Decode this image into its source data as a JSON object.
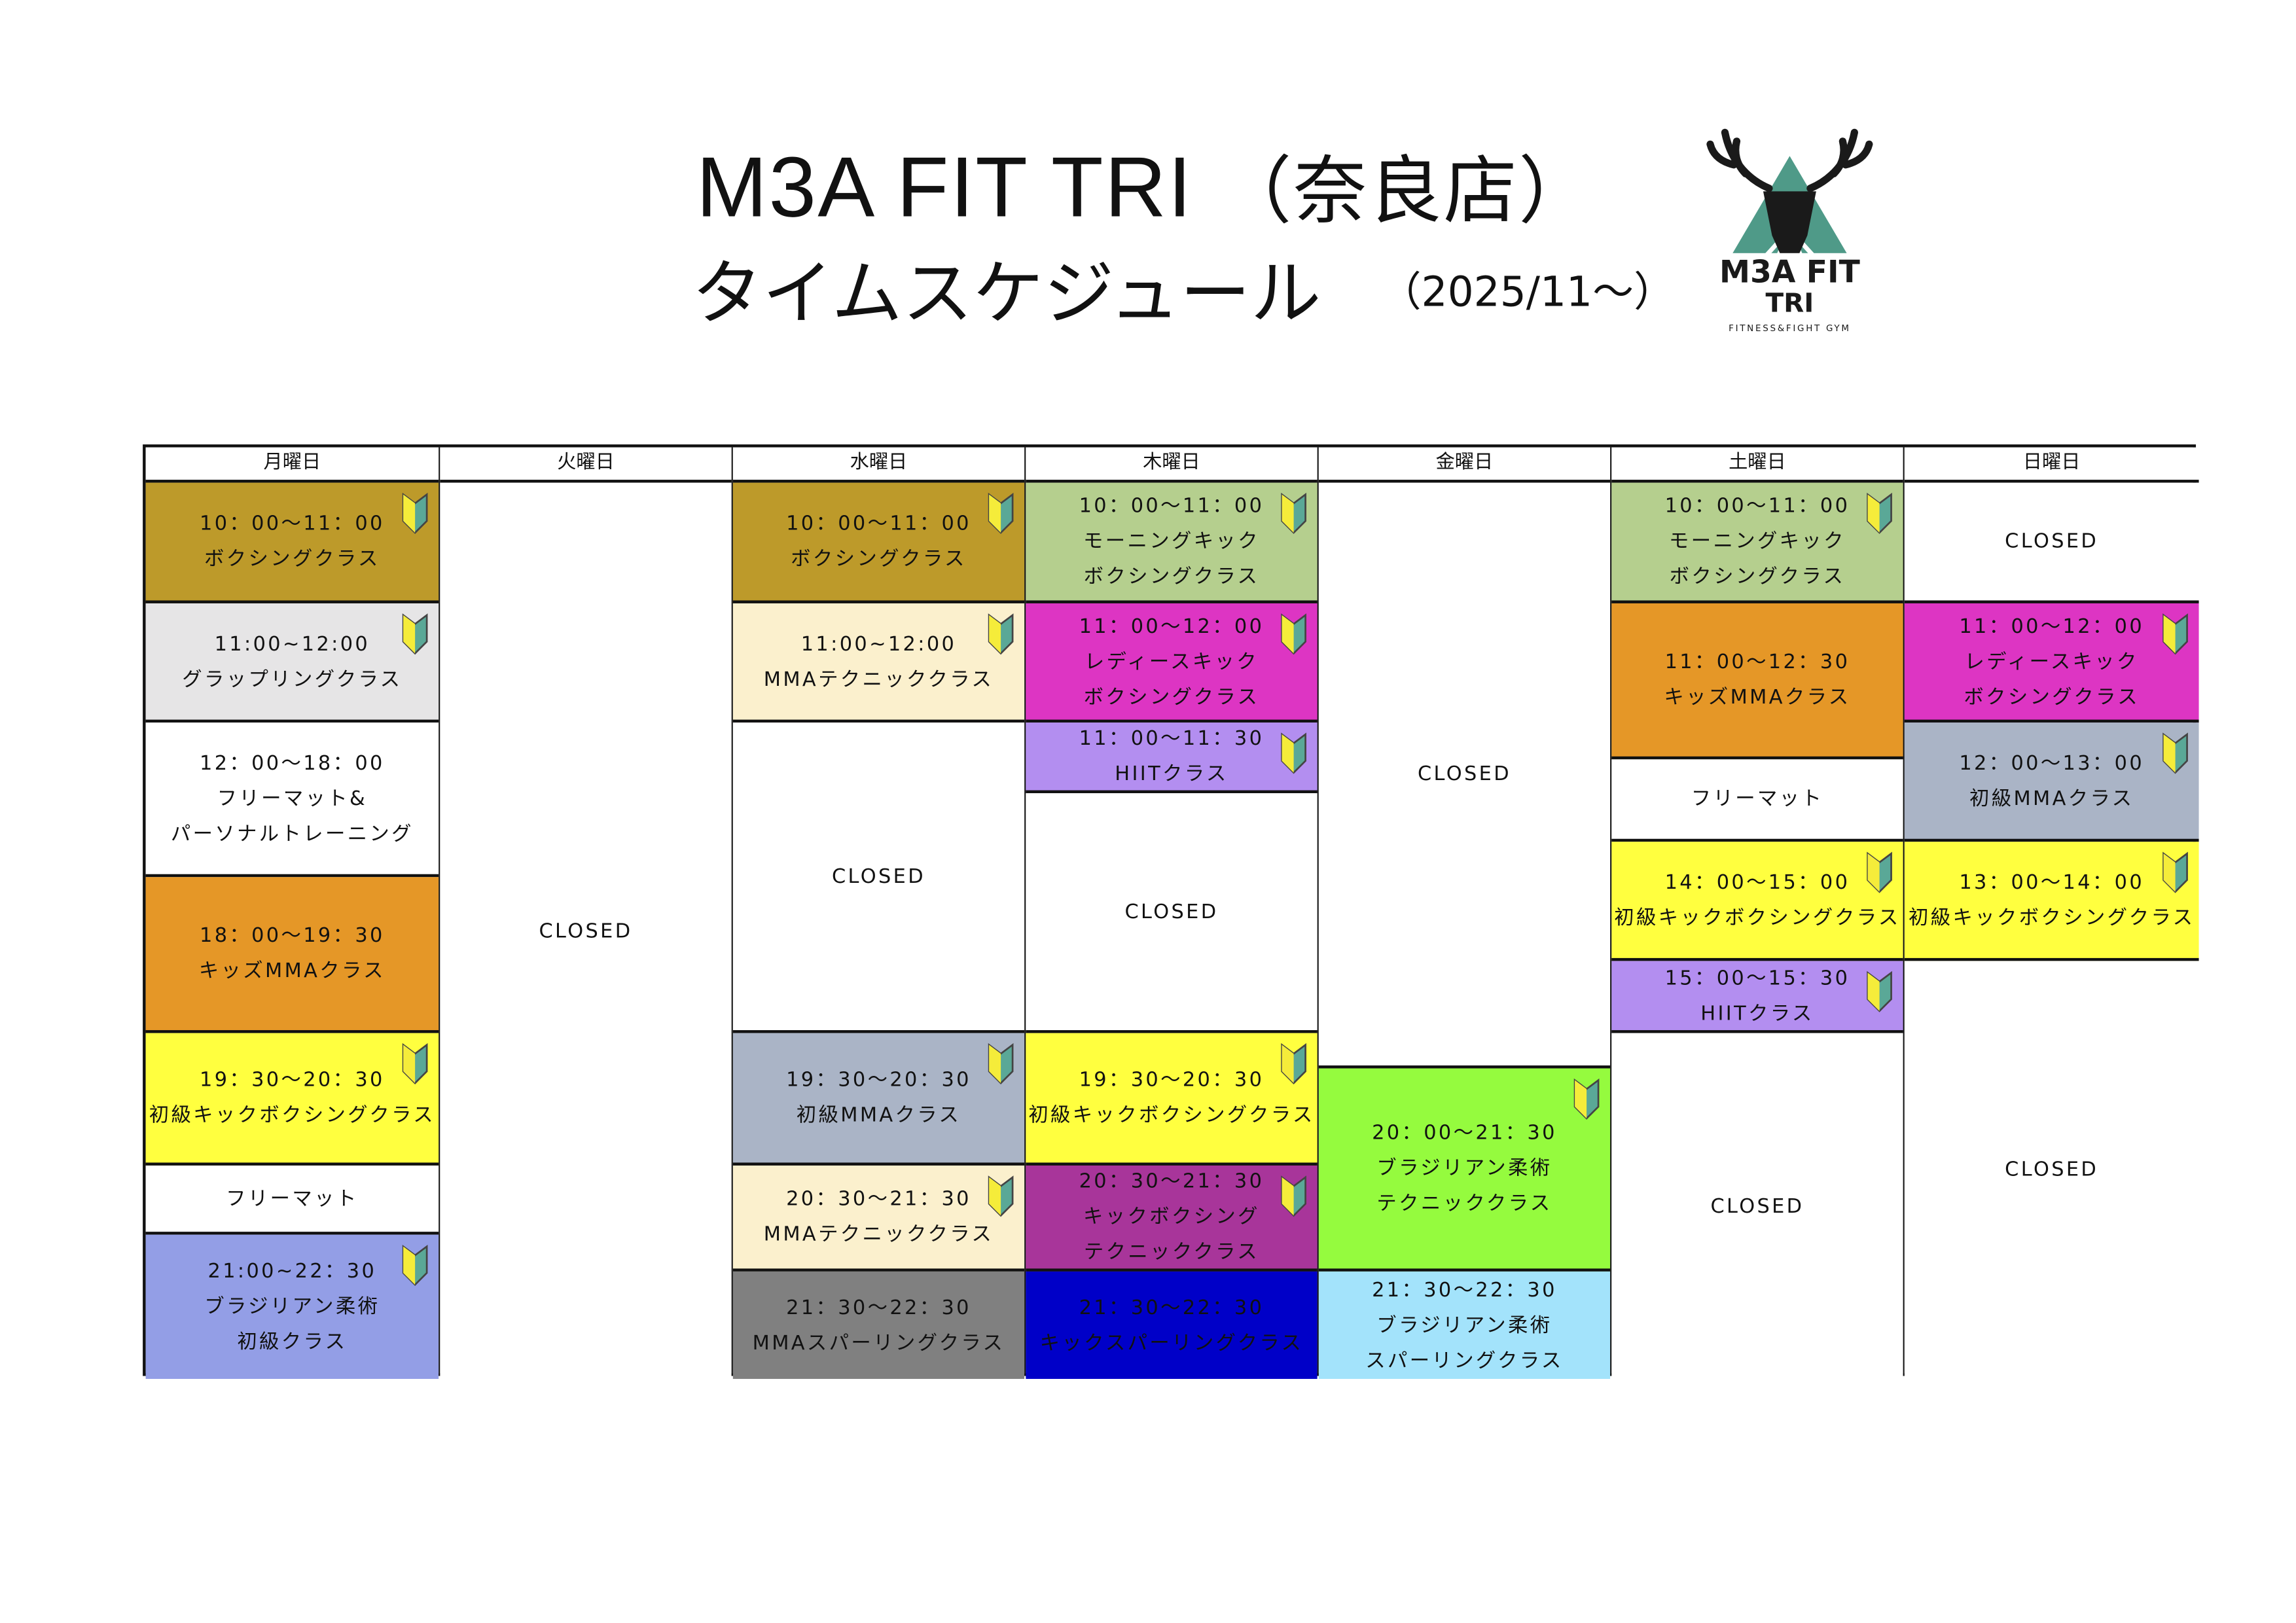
{
  "header": {
    "title": "M3A FIT TRI",
    "store": "（奈良店）",
    "subtitle": "タイムスケジュール",
    "period": "（2025/11～）"
  },
  "logo": {
    "main": "M3A FIT TRI",
    "tagline": "FITNESS&FIGHT GYM"
  },
  "colors": {
    "beginner_mark_yellow": "#f5ec3a",
    "beginner_mark_green": "#5aa897"
  },
  "days": [
    {
      "label": "月曜日",
      "blocks": [
        {
          "lines": [
            "10：00～11：00",
            "ボクシングクラス"
          ],
          "color": "#bd9a2a",
          "beginner": true
        },
        {
          "lines": [
            "11:00~12:00",
            "グラップリングクラス"
          ],
          "color": "#e6e5e6",
          "beginner": true
        },
        {
          "lines": [
            "12：00～18：00",
            "フリーマット&",
            "パーソナルトレーニング"
          ],
          "color": "#ffffff",
          "beginner": false
        },
        {
          "lines": [
            "18：00～19：30",
            "キッズMMAクラス"
          ],
          "color": "#e59727",
          "beginner": false
        },
        {
          "lines": [
            "19：30～20：30",
            "初級キックボクシングクラス"
          ],
          "color": "#ffff3f",
          "beginner": true
        },
        {
          "lines": [
            "フリーマット"
          ],
          "color": "#ffffff",
          "beginner": false
        },
        {
          "lines": [
            "21:00~22：30",
            "ブラジリアン柔術",
            "初級クラス"
          ],
          "color": "#939ee6",
          "beginner": true
        }
      ]
    },
    {
      "label": "火曜日",
      "blocks": [
        {
          "lines": [
            "CLOSED"
          ],
          "color": "#ffffff",
          "beginner": false
        }
      ]
    },
    {
      "label": "水曜日",
      "blocks": [
        {
          "lines": [
            "10：00～11：00",
            "ボクシングクラス"
          ],
          "color": "#bd9a2a",
          "beginner": true
        },
        {
          "lines": [
            "11:00~12:00",
            "MMAテクニッククラス"
          ],
          "color": "#fbf0cd",
          "beginner": true
        },
        {
          "lines": [
            "CLOSED"
          ],
          "color": "#ffffff",
          "beginner": false
        },
        {
          "lines": [
            "19：30～20：30",
            "初級MMAクラス"
          ],
          "color": "#aab4c6",
          "beginner": true
        },
        {
          "lines": [
            "20：30～21：30",
            "MMAテクニッククラス"
          ],
          "color": "#fbf0cd",
          "beginner": true
        },
        {
          "lines": [
            "21：30～22：30",
            "MMAスパーリングクラス"
          ],
          "color": "#808080",
          "beginner": false
        }
      ]
    },
    {
      "label": "木曜日",
      "blocks": [
        {
          "lines": [
            "10：00～11：00",
            "モーニングキック",
            "ボクシングクラス"
          ],
          "color": "#b5cf8e",
          "beginner": true
        },
        {
          "lines": [
            "11：00～12：00",
            "レディースキック",
            "ボクシングクラス"
          ],
          "color": "#dd35c3",
          "beginner": true
        },
        {
          "lines": [
            "11：00～11：30",
            "HIITクラス"
          ],
          "color": "#b38ef0",
          "beginner": true
        },
        {
          "lines": [
            "CLOSED"
          ],
          "color": "#ffffff",
          "beginner": false
        },
        {
          "lines": [
            "19：30～20：30",
            "初級キックボクシングクラス"
          ],
          "color": "#ffff3f",
          "beginner": true
        },
        {
          "lines": [
            "20：30～21：30",
            "キックボクシング",
            "テクニッククラス"
          ],
          "color": "#a8359a",
          "beginner": true
        },
        {
          "lines": [
            "21：30～22：30",
            "キックスパーリングクラス"
          ],
          "color": "#0000c8",
          "beginner": false
        }
      ]
    },
    {
      "label": "金曜日",
      "blocks": [
        {
          "lines": [
            "CLOSED"
          ],
          "color": "#ffffff",
          "beginner": false
        },
        {
          "lines": [
            "20：00～21：30",
            "ブラジリアン柔術",
            "テクニッククラス"
          ],
          "color": "#95fb3e",
          "beginner": true
        },
        {
          "lines": [
            "21：30～22：30",
            "ブラジリアン柔術",
            "スパーリングクラス"
          ],
          "color": "#a3e3fb",
          "beginner": false
        }
      ]
    },
    {
      "label": "土曜日",
      "blocks": [
        {
          "lines": [
            "10：00～11：00",
            "モーニングキック",
            "ボクシングクラス"
          ],
          "color": "#b5cf8e",
          "beginner": true
        },
        {
          "lines": [
            "11：00～12：30",
            "キッズMMAクラス"
          ],
          "color": "#e59727",
          "beginner": false
        },
        {
          "lines": [
            "フリーマット"
          ],
          "color": "#ffffff",
          "beginner": false
        },
        {
          "lines": [
            "14：00～15：00",
            "初級キックボクシングクラス"
          ],
          "color": "#ffff3f",
          "beginner": true
        },
        {
          "lines": [
            "15：00～15：30",
            "HIITクラス"
          ],
          "color": "#b38ef0",
          "beginner": true
        },
        {
          "lines": [
            "CLOSED"
          ],
          "color": "#ffffff",
          "beginner": false
        }
      ]
    },
    {
      "label": "日曜日",
      "blocks": [
        {
          "lines": [
            "CLOSED"
          ],
          "color": "#ffffff",
          "beginner": false
        },
        {
          "lines": [
            "11：00～12：00",
            "レディースキック",
            "ボクシングクラス"
          ],
          "color": "#dd35c3",
          "beginner": true
        },
        {
          "lines": [
            "12：00～13：00",
            "初級MMAクラス"
          ],
          "color": "#aab4c6",
          "beginner": true
        },
        {
          "lines": [
            "13：00～14：00",
            "初級キックボクシングクラス"
          ],
          "color": "#ffff3f",
          "beginner": true
        },
        {
          "lines": [
            "CLOSED"
          ],
          "color": "#ffffff",
          "beginner": false
        }
      ]
    }
  ]
}
